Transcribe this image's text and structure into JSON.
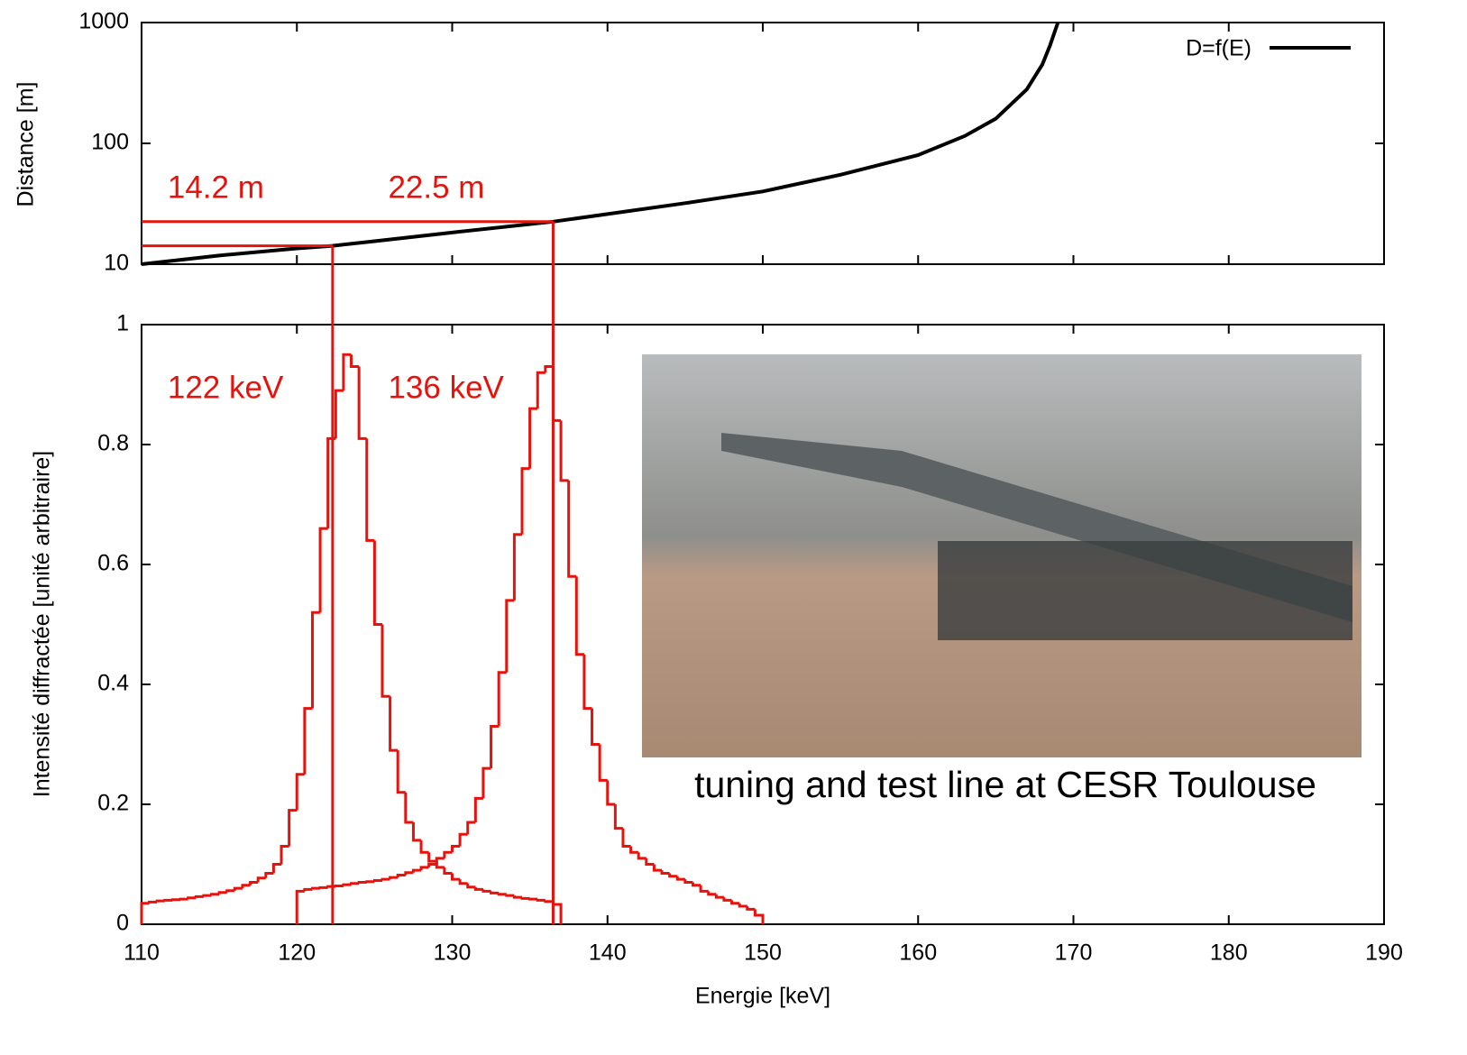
{
  "chart_data": [
    {
      "type": "line",
      "ylabel": "Distance [m]",
      "log_y": true,
      "ylim": [
        10,
        1000
      ],
      "yticks": [
        10,
        100,
        1000
      ],
      "xlim": [
        110,
        190
      ],
      "xticks": [
        110,
        120,
        130,
        140,
        150,
        160,
        170,
        180,
        190
      ],
      "legend": "upper right",
      "series": [
        {
          "name": "D=f(E)",
          "color": "#000000",
          "x": [
            110,
            115,
            120,
            122.3,
            125,
            130,
            136.5,
            140,
            145,
            150,
            155,
            160,
            163,
            165,
            167,
            168,
            168.5,
            169
          ],
          "values": [
            10,
            11.8,
            13.5,
            14.2,
            15.5,
            18.3,
            22.5,
            26,
            32,
            40,
            55,
            80,
            115,
            160,
            280,
            450,
            650,
            1000
          ]
        }
      ],
      "markers": [
        {
          "x": 122.3,
          "y": 14.2,
          "y_label": "14.2 m",
          "x_label": "122 keV",
          "color": "#e8120c"
        },
        {
          "x": 136.5,
          "y": 22.5,
          "y_label": "22.5  m",
          "x_label": "136 keV",
          "color": "#e8120c"
        }
      ]
    },
    {
      "type": "histogram",
      "ylabel": "Intensité diffractée [unité arbitraire]",
      "xlabel": "Energie [keV]",
      "ylim": [
        0,
        1
      ],
      "yticks": [
        0,
        0.2,
        0.4,
        0.6,
        0.8,
        1
      ],
      "xlim": [
        110,
        190
      ],
      "xticks": [
        110,
        120,
        130,
        140,
        150,
        160,
        170,
        180,
        190
      ],
      "caption": "tuning and test line at CESR Toulouse",
      "series": [
        {
          "color": "#e8120c",
          "bins": [
            110,
            110.5,
            111,
            111.5,
            112,
            112.5,
            113,
            113.5,
            114,
            114.5,
            115,
            115.5,
            116,
            116.5,
            117,
            117.5,
            118,
            118.5,
            119,
            119.5,
            120,
            120.5,
            121,
            121.5,
            122,
            122.5,
            123,
            123.5,
            124,
            124.5,
            125,
            125.5,
            126,
            126.5,
            127,
            127.5,
            128,
            128.5,
            129,
            129.5,
            130,
            130.5,
            131,
            131.5,
            132,
            132.5,
            133,
            133.5,
            134,
            134.5,
            135,
            135.5,
            136,
            136.5,
            137
          ],
          "values": [
            0.035,
            0.037,
            0.039,
            0.04,
            0.041,
            0.042,
            0.044,
            0.046,
            0.048,
            0.05,
            0.053,
            0.056,
            0.06,
            0.065,
            0.07,
            0.077,
            0.085,
            0.1,
            0.13,
            0.19,
            0.25,
            0.36,
            0.52,
            0.66,
            0.81,
            0.89,
            0.95,
            0.93,
            0.81,
            0.64,
            0.5,
            0.38,
            0.29,
            0.22,
            0.17,
            0.14,
            0.12,
            0.105,
            0.095,
            0.085,
            0.075,
            0.068,
            0.062,
            0.058,
            0.055,
            0.052,
            0.05,
            0.048,
            0.045,
            0.043,
            0.042,
            0.04,
            0.038,
            0.033
          ]
        },
        {
          "color": "#e8120c",
          "bins": [
            120,
            120.5,
            121,
            121.5,
            122,
            122.5,
            123,
            123.5,
            124,
            124.5,
            125,
            125.5,
            126,
            126.5,
            127,
            127.5,
            128,
            128.5,
            129,
            129.5,
            130,
            130.5,
            131,
            131.5,
            132,
            132.5,
            133,
            133.5,
            134,
            134.5,
            135,
            135.5,
            136,
            136.5,
            137,
            137.5,
            138,
            138.5,
            139,
            139.5,
            140,
            140.5,
            141,
            141.5,
            142,
            142.5,
            143,
            143.5,
            144,
            144.5,
            145,
            145.5,
            146,
            146.5,
            147,
            147.5,
            148,
            148.5,
            149,
            149.5,
            150
          ],
          "values": [
            0.055,
            0.058,
            0.06,
            0.061,
            0.063,
            0.064,
            0.066,
            0.068,
            0.07,
            0.071,
            0.073,
            0.075,
            0.078,
            0.082,
            0.086,
            0.09,
            0.095,
            0.1,
            0.11,
            0.12,
            0.13,
            0.15,
            0.17,
            0.21,
            0.26,
            0.33,
            0.42,
            0.54,
            0.65,
            0.76,
            0.86,
            0.92,
            0.93,
            0.84,
            0.74,
            0.58,
            0.45,
            0.36,
            0.3,
            0.24,
            0.2,
            0.16,
            0.13,
            0.12,
            0.11,
            0.1,
            0.09,
            0.085,
            0.08,
            0.075,
            0.07,
            0.065,
            0.055,
            0.05,
            0.045,
            0.04,
            0.035,
            0.03,
            0.025,
            0.015
          ]
        }
      ]
    }
  ]
}
